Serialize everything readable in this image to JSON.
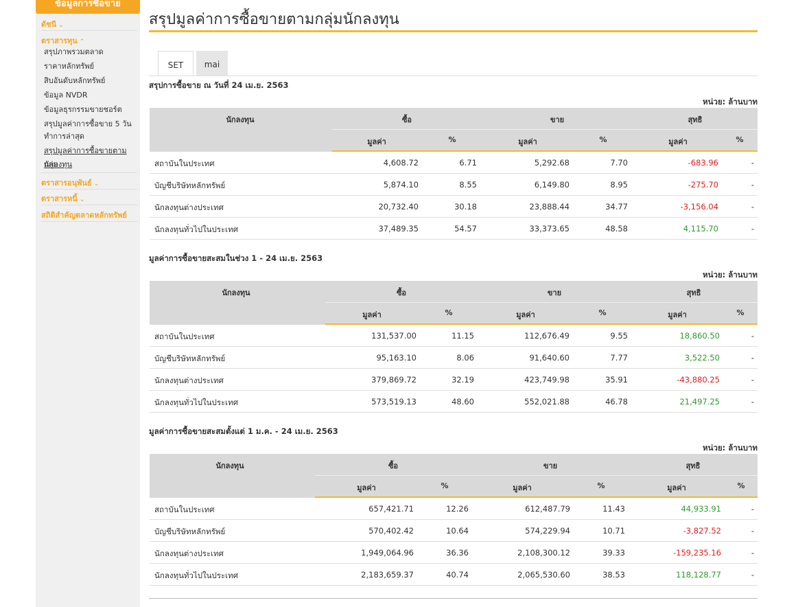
{
  "sidebar": {
    "header": "ข้อมูลการซื้อขาย",
    "items": [
      {
        "label": "ดัชนี",
        "chevron": "⌄"
      },
      {
        "label": "ตราสารทุน",
        "chevron": "⌃"
      }
    ],
    "subitems": [
      "สรุปภาพรวมตลาด",
      "ราคาหลักทรัพย์",
      "สิบอันดับหลักทรัพย์",
      "ข้อมูล NVDR",
      "ข้อมูลธุรกรรมขายชอร์ต",
      "สรุปมูลค่าการซื้อขาย 5 วัน",
      "ทำการล่าสุด",
      "สรุปมูลค่าการซื้อขายตามกลุ่ม",
      "นักลงทุน"
    ],
    "bottom_items": [
      {
        "label": "ตราสารอนุพันธ์",
        "chevron": "⌄"
      },
      {
        "label": "ตราสารหนี้",
        "chevron": "⌄"
      },
      {
        "label": "สถิติสำคัญตลาดหลักทรัพย์",
        "chevron": ""
      }
    ]
  },
  "page": {
    "title": "สรุปมูลค่าการซื้อขายตามกลุ่มนักลงทุน",
    "tabs": [
      "SET",
      "mai"
    ]
  },
  "headers": {
    "investor": "นักลงทุน",
    "buy": "ซื้อ",
    "sell": "ขาย",
    "net": "สุทธิ",
    "value": "มูลค่า",
    "percent": "%"
  },
  "unit_label": "หน่วย: ล้านบาท",
  "sections": [
    {
      "title": "สรุปการซื้อขาย ณ วันที่ 24 เม.ย. 2563",
      "rows": [
        {
          "investor": "สถาบันในประเทศ",
          "buy_value": "4,608.72",
          "buy_pct": "6.71",
          "sell_value": "5,292.68",
          "sell_pct": "7.70",
          "net_value": "-683.96",
          "net_pct": "-",
          "net_sign": "neg"
        },
        {
          "investor": "บัญชีบริษัทหลักทรัพย์",
          "buy_value": "5,874.10",
          "buy_pct": "8.55",
          "sell_value": "6,149.80",
          "sell_pct": "8.95",
          "net_value": "-275.70",
          "net_pct": "-",
          "net_sign": "neg"
        },
        {
          "investor": "นักลงทุนต่างประเทศ",
          "buy_value": "20,732.40",
          "buy_pct": "30.18",
          "sell_value": "23,888.44",
          "sell_pct": "34.77",
          "net_value": "-3,156.04",
          "net_pct": "-",
          "net_sign": "neg"
        },
        {
          "investor": "นักลงทุนทั่วไปในประเทศ",
          "buy_value": "37,489.35",
          "buy_pct": "54.57",
          "sell_value": "33,373.65",
          "sell_pct": "48.58",
          "net_value": "4,115.70",
          "net_pct": "-",
          "net_sign": "pos"
        }
      ]
    },
    {
      "title": "มูลค่าการซื้อขายสะสมในช่วง 1 - 24 เม.ย. 2563",
      "rows": [
        {
          "investor": "สถาบันในประเทศ",
          "buy_value": "131,537.00",
          "buy_pct": "11.15",
          "sell_value": "112,676.49",
          "sell_pct": "9.55",
          "net_value": "18,860.50",
          "net_pct": "-",
          "net_sign": "pos"
        },
        {
          "investor": "บัญชีบริษัทหลักทรัพย์",
          "buy_value": "95,163.10",
          "buy_pct": "8.06",
          "sell_value": "91,640.60",
          "sell_pct": "7.77",
          "net_value": "3,522.50",
          "net_pct": "-",
          "net_sign": "pos"
        },
        {
          "investor": "นักลงทุนต่างประเทศ",
          "buy_value": "379,869.72",
          "buy_pct": "32.19",
          "sell_value": "423,749.98",
          "sell_pct": "35.91",
          "net_value": "-43,880.25",
          "net_pct": "-",
          "net_sign": "neg"
        },
        {
          "investor": "นักลงทุนทั่วไปในประเทศ",
          "buy_value": "573,519.13",
          "buy_pct": "48.60",
          "sell_value": "552,021.88",
          "sell_pct": "46.78",
          "net_value": "21,497.25",
          "net_pct": "-",
          "net_sign": "pos"
        }
      ]
    },
    {
      "title": "มูลค่าการซื้อขายสะสมตั้งแต่ 1 ม.ค. - 24 เม.ย. 2563",
      "rows": [
        {
          "investor": "สถาบันในประเทศ",
          "buy_value": "657,421.71",
          "buy_pct": "12.26",
          "sell_value": "612,487.79",
          "sell_pct": "11.43",
          "net_value": "44,933.91",
          "net_pct": "-",
          "net_sign": "pos"
        },
        {
          "investor": "บัญชีบริษัทหลักทรัพย์",
          "buy_value": "570,402.42",
          "buy_pct": "10.64",
          "sell_value": "574,229.94",
          "sell_pct": "10.71",
          "net_value": "-3,827.52",
          "net_pct": "-",
          "net_sign": "neg"
        },
        {
          "investor": "นักลงทุนต่างประเทศ",
          "buy_value": "1,949,064.96",
          "buy_pct": "36.36",
          "sell_value": "2,108,300.12",
          "sell_pct": "39.33",
          "net_value": "-159,235.16",
          "net_pct": "-",
          "net_sign": "neg"
        },
        {
          "investor": "นักลงทุนทั่วไปในประเทศ",
          "buy_value": "2,183,659.37",
          "buy_pct": "40.74",
          "sell_value": "2,065,530.60",
          "sell_pct": "38.53",
          "net_value": "118,128.77",
          "net_pct": "-",
          "net_sign": "pos"
        }
      ]
    }
  ],
  "colors": {
    "accent": "#f5a623",
    "negative": "#e02020",
    "positive": "#2e9a2e"
  }
}
